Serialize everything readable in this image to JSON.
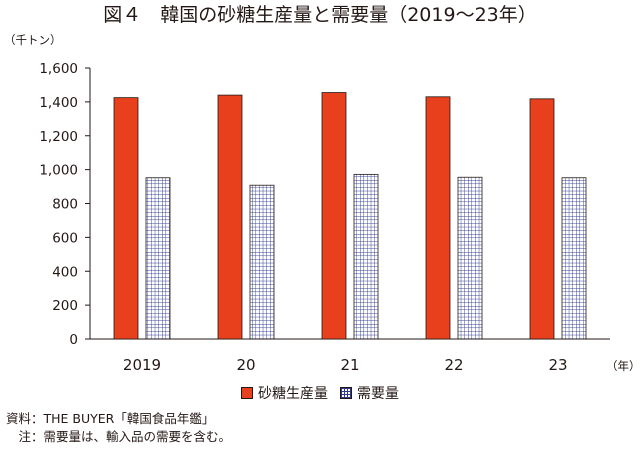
{
  "title": "図４　韓国の砂糖生産量と需要量（2019～23年）",
  "notes": [
    "資料：THE BUYER「韓国食品年鑑」",
    "　注：需要量は、輸入品の需要を含む。"
  ],
  "chart_data": {
    "type": "bar",
    "y_unit": "（千トン）",
    "x_unit": "（年）",
    "categories": [
      "2019",
      "20",
      "21",
      "22",
      "23"
    ],
    "series": [
      {
        "name": "砂糖生産量",
        "values": [
          1425,
          1440,
          1455,
          1430,
          1418
        ],
        "color": "#e8401c",
        "pattern": "solid"
      },
      {
        "name": "需要量",
        "values": [
          952,
          908,
          972,
          955,
          952
        ],
        "color": "#2f3a8f",
        "pattern": "grid"
      }
    ],
    "ylim": [
      0,
      1600
    ],
    "yticks": [
      0,
      200,
      400,
      600,
      800,
      1000,
      1200,
      1400,
      1600
    ],
    "ytick_labels": [
      "0",
      "200",
      "400",
      "600",
      "800",
      "1,000",
      "1,200",
      "1,400",
      "1,600"
    ],
    "grid": false,
    "legend_position": "bottom"
  }
}
